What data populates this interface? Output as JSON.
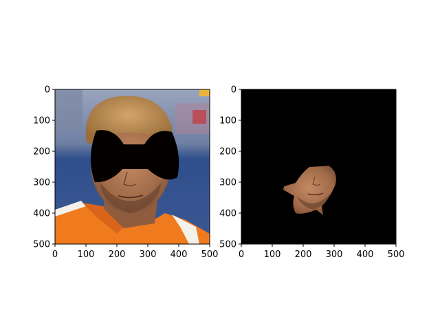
{
  "chart_data": [
    {
      "type": "image",
      "panel": "left",
      "description_visible": "photo of a man in an orange shirt with a black bow-tie shaped mask over the eyes",
      "xlim": [
        0,
        500
      ],
      "ylim": [
        500,
        0
      ],
      "xticks": [
        0,
        100,
        200,
        300,
        400,
        500
      ],
      "yticks": [
        0,
        100,
        200,
        300,
        400,
        500
      ],
      "xticklabels": [
        "0",
        "100",
        "200",
        "300",
        "400",
        "500"
      ],
      "yticklabels": [
        "0",
        "100",
        "200",
        "300",
        "400",
        "500"
      ],
      "grid": false
    },
    {
      "type": "image",
      "panel": "right",
      "description_visible": "black background with only the lower face region of the man visible",
      "xlim": [
        0,
        500
      ],
      "ylim": [
        500,
        0
      ],
      "xticks": [
        0,
        100,
        200,
        300,
        400,
        500
      ],
      "yticks": [
        0,
        100,
        200,
        300,
        400,
        500
      ],
      "xticklabels": [
        "0",
        "100",
        "200",
        "300",
        "400",
        "500"
      ],
      "yticklabels": [
        "0",
        "100",
        "200",
        "300",
        "400",
        "500"
      ],
      "grid": false
    }
  ],
  "colors": {
    "sky_top": "#8c9bb6",
    "wall_blue": "#2f4f8c",
    "shirt_orange": "#f07a1e",
    "skin": "#b07a55",
    "hair": "#b88a4e",
    "mask_black": "#050000",
    "bg_black": "#000000"
  }
}
